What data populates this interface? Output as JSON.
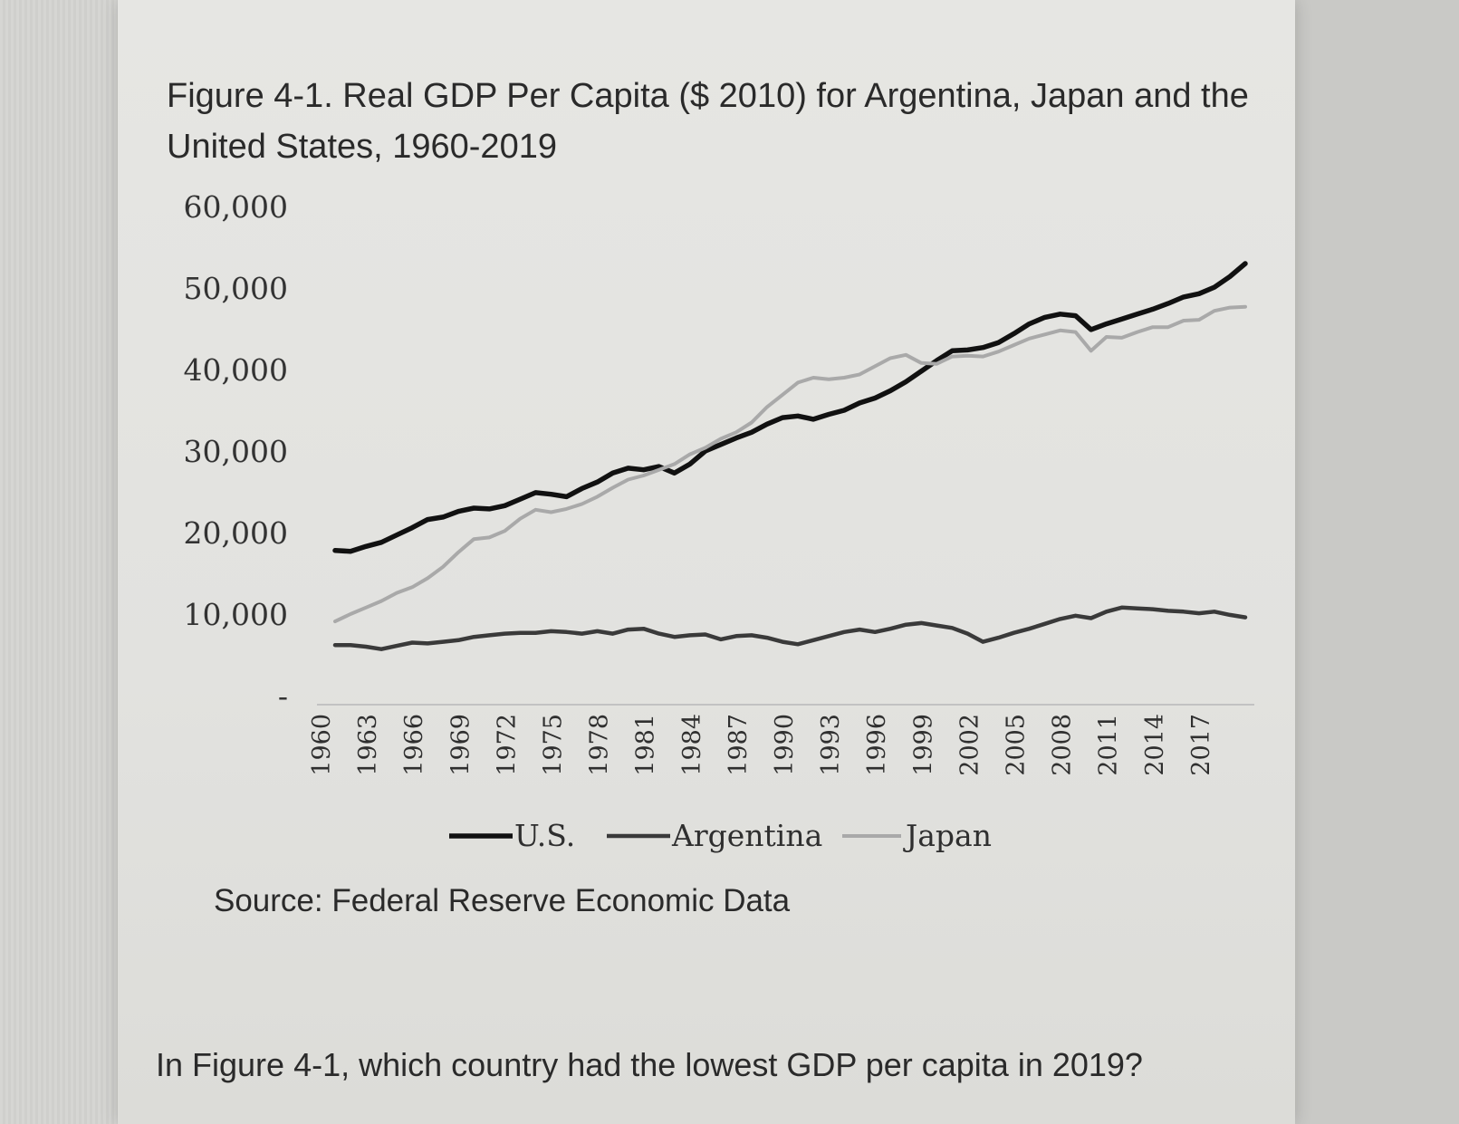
{
  "figure": {
    "title": "Figure 4-1. Real GDP Per Capita ($ 2010) for Argentina, Japan and the United States, 1960-2019",
    "source": "Source: Federal Reserve Economic Data",
    "question": "In Figure 4-1, which country had the lowest GDP per capita in 2019?"
  },
  "chart_data": {
    "type": "line",
    "title": "Figure 4-1. Real GDP Per Capita ($ 2010) for Argentina, Japan and the United States, 1960-2019",
    "xlabel": "",
    "ylabel": "",
    "ylim": [
      0,
      60000
    ],
    "xlim": [
      1960,
      2019
    ],
    "y_ticks": [
      "-",
      "10,000",
      "20,000",
      "30,000",
      "40,000",
      "50,000",
      "60,000"
    ],
    "y_tick_values": [
      0,
      10000,
      20000,
      30000,
      40000,
      50000,
      60000
    ],
    "x_ticks": [
      "1960",
      "1963",
      "1966",
      "1969",
      "1972",
      "1975",
      "1978",
      "1981",
      "1984",
      "1987",
      "1990",
      "1993",
      "1996",
      "1999",
      "2002",
      "2005",
      "2008",
      "2011",
      "2014",
      "2017"
    ],
    "x_tick_values": [
      1960,
      1963,
      1966,
      1969,
      1972,
      1975,
      1978,
      1981,
      1984,
      1987,
      1990,
      1993,
      1996,
      1999,
      2002,
      2005,
      2008,
      2011,
      2014,
      2017
    ],
    "legend_position": "bottom",
    "grid": false,
    "series": [
      {
        "name": "U.S.",
        "color": "#111111",
        "x": [
          1960,
          1961,
          1962,
          1963,
          1964,
          1965,
          1966,
          1967,
          1968,
          1969,
          1970,
          1971,
          1972,
          1973,
          1974,
          1975,
          1976,
          1977,
          1978,
          1979,
          1980,
          1981,
          1982,
          1983,
          1984,
          1985,
          1986,
          1987,
          1988,
          1989,
          1990,
          1991,
          1992,
          1993,
          1994,
          1995,
          1996,
          1997,
          1998,
          1999,
          2000,
          2001,
          2002,
          2003,
          2004,
          2005,
          2006,
          2007,
          2008,
          2009,
          2010,
          2011,
          2012,
          2013,
          2014,
          2015,
          2016,
          2017,
          2018,
          2019
        ],
        "values": [
          17800,
          17700,
          18300,
          18800,
          19700,
          20600,
          21600,
          21900,
          22600,
          23000,
          22900,
          23300,
          24100,
          24900,
          24700,
          24400,
          25400,
          26200,
          27300,
          27900,
          27700,
          28100,
          27300,
          28400,
          30000,
          30800,
          31600,
          32300,
          33300,
          34100,
          34300,
          33900,
          34500,
          35000,
          35900,
          36500,
          37400,
          38500,
          39800,
          41100,
          42300,
          42400,
          42700,
          43300,
          44400,
          45600,
          46400,
          46800,
          46600,
          44900,
          45600,
          46200,
          46800,
          47400,
          48100,
          48900,
          49300,
          50100,
          51400,
          53000
        ]
      },
      {
        "name": "Argentina",
        "color": "#3a3a3a",
        "x": [
          1960,
          1961,
          1962,
          1963,
          1964,
          1965,
          1966,
          1967,
          1968,
          1969,
          1970,
          1971,
          1972,
          1973,
          1974,
          1975,
          1976,
          1977,
          1978,
          1979,
          1980,
          1981,
          1982,
          1983,
          1984,
          1985,
          1986,
          1987,
          1988,
          1989,
          1990,
          1991,
          1992,
          1993,
          1994,
          1995,
          1996,
          1997,
          1998,
          1999,
          2000,
          2001,
          2002,
          2003,
          2004,
          2005,
          2006,
          2007,
          2008,
          2009,
          2010,
          2011,
          2012,
          2013,
          2014,
          2015,
          2016,
          2017,
          2018,
          2019
        ],
        "values": [
          6200,
          6200,
          6000,
          5700,
          6100,
          6500,
          6400,
          6600,
          6800,
          7200,
          7400,
          7600,
          7700,
          7700,
          7900,
          7800,
          7600,
          7900,
          7600,
          8100,
          8200,
          7600,
          7200,
          7400,
          7500,
          6900,
          7300,
          7400,
          7100,
          6600,
          6300,
          6800,
          7300,
          7800,
          8100,
          7800,
          8200,
          8700,
          8900,
          8600,
          8300,
          7600,
          6600,
          7100,
          7700,
          8200,
          8800,
          9400,
          9800,
          9500,
          10300,
          10800,
          10700,
          10600,
          10400,
          10300,
          10100,
          10300,
          9900,
          9600
        ]
      },
      {
        "name": "Japan",
        "color": "#a9a9a9",
        "x": [
          1960,
          1961,
          1962,
          1963,
          1964,
          1965,
          1966,
          1967,
          1968,
          1969,
          1970,
          1971,
          1972,
          1973,
          1974,
          1975,
          1976,
          1977,
          1978,
          1979,
          1980,
          1981,
          1982,
          1983,
          1984,
          1985,
          1986,
          1987,
          1988,
          1989,
          1990,
          1991,
          1992,
          1993,
          1994,
          1995,
          1996,
          1997,
          1998,
          1999,
          2000,
          2001,
          2002,
          2003,
          2004,
          2005,
          2006,
          2007,
          2008,
          2009,
          2010,
          2011,
          2012,
          2013,
          2014,
          2015,
          2016,
          2017,
          2018,
          2019
        ],
        "values": [
          9100,
          10000,
          10800,
          11600,
          12600,
          13300,
          14400,
          15800,
          17600,
          19200,
          19400,
          20200,
          21700,
          22800,
          22500,
          22900,
          23500,
          24400,
          25500,
          26500,
          27000,
          27700,
          28400,
          29600,
          30400,
          31500,
          32300,
          33500,
          35400,
          36900,
          38400,
          39000,
          38800,
          39000,
          39400,
          40400,
          41400,
          41800,
          40800,
          40700,
          41600,
          41700,
          41600,
          42200,
          43000,
          43800,
          44300,
          44800,
          44600,
          42300,
          44000,
          43900,
          44600,
          45200,
          45200,
          46000,
          46100,
          47200,
          47600,
          47700
        ]
      }
    ]
  }
}
